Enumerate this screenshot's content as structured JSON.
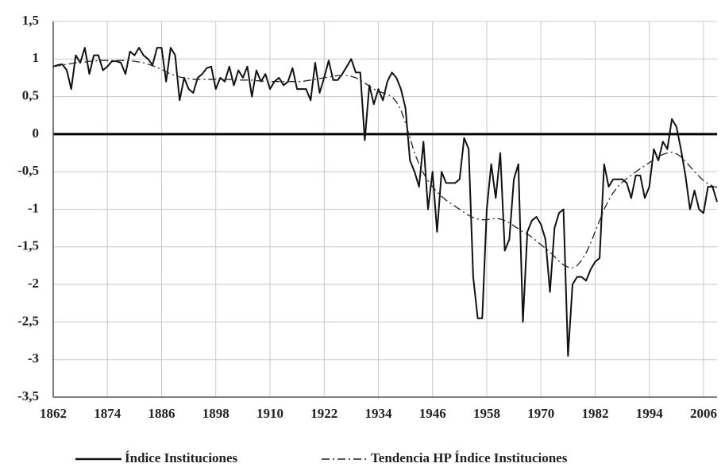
{
  "chart_data": {
    "type": "line",
    "x": [
      1862,
      1863,
      1864,
      1865,
      1866,
      1867,
      1868,
      1869,
      1870,
      1871,
      1872,
      1873,
      1874,
      1875,
      1876,
      1877,
      1878,
      1879,
      1880,
      1881,
      1882,
      1883,
      1884,
      1885,
      1886,
      1887,
      1888,
      1889,
      1890,
      1891,
      1892,
      1893,
      1894,
      1895,
      1896,
      1897,
      1898,
      1899,
      1900,
      1901,
      1902,
      1903,
      1904,
      1905,
      1906,
      1907,
      1908,
      1909,
      1910,
      1911,
      1912,
      1913,
      1914,
      1915,
      1916,
      1917,
      1918,
      1919,
      1920,
      1921,
      1922,
      1923,
      1924,
      1925,
      1926,
      1927,
      1928,
      1929,
      1930,
      1931,
      1932,
      1933,
      1934,
      1935,
      1936,
      1937,
      1938,
      1939,
      1940,
      1941,
      1942,
      1943,
      1944,
      1945,
      1946,
      1947,
      1948,
      1949,
      1950,
      1951,
      1952,
      1953,
      1954,
      1955,
      1956,
      1957,
      1958,
      1959,
      1960,
      1961,
      1962,
      1963,
      1964,
      1965,
      1966,
      1967,
      1968,
      1969,
      1970,
      1971,
      1972,
      1973,
      1974,
      1975,
      1976,
      1977,
      1978,
      1979,
      1980,
      1981,
      1982,
      1983,
      1984,
      1985,
      1986,
      1987,
      1988,
      1989,
      1990,
      1991,
      1992,
      1993,
      1994,
      1995,
      1996,
      1997,
      1998,
      1999,
      2000,
      2001,
      2002,
      2003,
      2004,
      2005,
      2006,
      2007,
      2008,
      2009
    ],
    "series": [
      {
        "name": "Índice Instituciones",
        "color": "#111111",
        "style": "solid",
        "values": [
          0.9,
          0.92,
          0.93,
          0.85,
          0.6,
          1.05,
          0.95,
          1.15,
          0.8,
          1.05,
          1.05,
          0.85,
          0.9,
          0.97,
          0.97,
          0.95,
          0.8,
          1.1,
          1.05,
          1.15,
          1.05,
          1.0,
          0.92,
          1.15,
          1.15,
          0.7,
          1.15,
          1.05,
          0.45,
          0.75,
          0.6,
          0.55,
          0.75,
          0.8,
          0.88,
          0.9,
          0.6,
          0.75,
          0.7,
          0.9,
          0.65,
          0.85,
          0.75,
          0.9,
          0.5,
          0.85,
          0.7,
          0.8,
          0.6,
          0.7,
          0.75,
          0.65,
          0.7,
          0.88,
          0.6,
          0.6,
          0.6,
          0.45,
          0.95,
          0.55,
          0.75,
          0.98,
          0.72,
          0.72,
          0.8,
          0.9,
          1.0,
          0.82,
          0.82,
          -0.08,
          0.65,
          0.4,
          0.6,
          0.45,
          0.7,
          0.82,
          0.75,
          0.6,
          0.35,
          -0.35,
          -0.5,
          -0.7,
          -0.1,
          -1.0,
          -0.5,
          -1.3,
          -0.5,
          -0.65,
          -0.65,
          -0.65,
          -0.6,
          -0.05,
          -0.2,
          -1.9,
          -2.45,
          -2.45,
          -1.0,
          -0.4,
          -0.85,
          -0.25,
          -1.55,
          -1.4,
          -0.6,
          -0.4,
          -2.5,
          -1.3,
          -1.15,
          -1.1,
          -1.2,
          -1.4,
          -2.1,
          -1.25,
          -1.05,
          -1.0,
          -2.95,
          -2.0,
          -1.9,
          -1.9,
          -1.95,
          -1.8,
          -1.7,
          -1.65,
          -0.4,
          -0.7,
          -0.6,
          -0.6,
          -0.6,
          -0.65,
          -0.85,
          -0.55,
          -0.55,
          -0.85,
          -0.7,
          -0.2,
          -0.35,
          -0.1,
          -0.2,
          0.2,
          0.1,
          -0.2,
          -0.55,
          -1.0,
          -0.75,
          -1.0,
          -1.05,
          -0.7,
          -0.7,
          -0.9
        ]
      },
      {
        "name": "Tendencia HP Índice Instituciones",
        "color": "#222222",
        "style": "dashdot",
        "values": [
          0.9,
          0.91,
          0.92,
          0.93,
          0.94,
          0.95,
          0.96,
          0.96,
          0.97,
          0.97,
          0.98,
          0.98,
          0.98,
          0.98,
          0.98,
          0.98,
          0.98,
          0.98,
          0.97,
          0.96,
          0.95,
          0.93,
          0.91,
          0.89,
          0.86,
          0.83,
          0.8,
          0.78,
          0.76,
          0.75,
          0.74,
          0.73,
          0.73,
          0.73,
          0.73,
          0.73,
          0.73,
          0.73,
          0.73,
          0.73,
          0.72,
          0.72,
          0.72,
          0.72,
          0.72,
          0.71,
          0.71,
          0.7,
          0.7,
          0.7,
          0.7,
          0.7,
          0.7,
          0.7,
          0.7,
          0.7,
          0.71,
          0.72,
          0.73,
          0.74,
          0.75,
          0.76,
          0.77,
          0.78,
          0.78,
          0.78,
          0.77,
          0.75,
          0.72,
          0.68,
          0.64,
          0.6,
          0.57,
          0.55,
          0.53,
          0.5,
          0.43,
          0.32,
          0.15,
          -0.05,
          -0.25,
          -0.4,
          -0.52,
          -0.62,
          -0.7,
          -0.77,
          -0.83,
          -0.88,
          -0.92,
          -0.96,
          -1.0,
          -1.04,
          -1.08,
          -1.11,
          -1.13,
          -1.14,
          -1.14,
          -1.13,
          -1.12,
          -1.13,
          -1.15,
          -1.18,
          -1.22,
          -1.26,
          -1.3,
          -1.33,
          -1.37,
          -1.42,
          -1.47,
          -1.52,
          -1.57,
          -1.63,
          -1.69,
          -1.74,
          -1.77,
          -1.78,
          -1.75,
          -1.68,
          -1.58,
          -1.45,
          -1.3,
          -1.15,
          -1.0,
          -0.88,
          -0.78,
          -0.7,
          -0.64,
          -0.59,
          -0.55,
          -0.5,
          -0.46,
          -0.42,
          -0.38,
          -0.34,
          -0.3,
          -0.27,
          -0.25,
          -0.24,
          -0.26,
          -0.3,
          -0.36,
          -0.43,
          -0.5,
          -0.56,
          -0.62,
          -0.66,
          -0.69,
          -0.71
        ]
      }
    ],
    "xlim": [
      1862,
      2009
    ],
    "xticks": [
      1862,
      1874,
      1886,
      1898,
      1910,
      1922,
      1934,
      1946,
      1958,
      1970,
      1982,
      1994,
      2006
    ],
    "ylim": [
      -3.5,
      1.5
    ],
    "yticks": [
      {
        "value": 1.5,
        "label": "1,5"
      },
      1,
      {
        "value": 0.5,
        "label": "0,5"
      },
      0,
      {
        "value": -0.5,
        "label": "-0,5"
      },
      -1,
      {
        "value": -1.5,
        "label": "-1,5"
      },
      -2,
      {
        "value": -2.5,
        "label": "-2,5"
      },
      -3,
      {
        "value": -3.5,
        "label": "-3,5"
      }
    ],
    "grid": true,
    "legend": "bottom"
  }
}
